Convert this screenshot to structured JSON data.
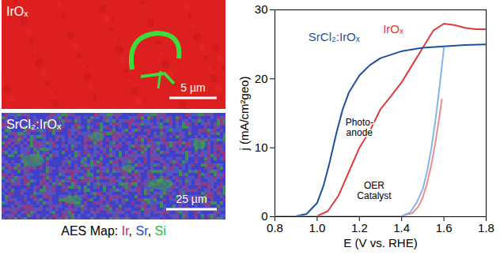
{
  "aes_maps": {
    "panels": [
      {
        "label": "IrOₓ",
        "scale_bar": "5 µm"
      },
      {
        "label": "SrCl₂:IrOₓ",
        "scale_bar": "25 µm"
      }
    ],
    "caption": "AES Map: Ir, Sr, Si",
    "element_colors": {
      "Ir": "#e3241f",
      "Sr": "#2a3fd0",
      "Si": "#2db82d"
    }
  },
  "chart_data": {
    "type": "line",
    "xlabel": "E (V vs. RHE)",
    "ylabel": "j (mA/cm²geo)",
    "xlim": [
      0.8,
      1.8
    ],
    "ylim": [
      0,
      30
    ],
    "xticks": [
      0.8,
      {
        "value": 1,
        "label": "1.0"
      },
      1.2,
      1.4,
      1.6,
      1.8
    ],
    "yticks": [
      0,
      10,
      20,
      30
    ],
    "series": [
      {
        "name": "IrOₓ",
        "color": "#e0393e",
        "x": [
          0.8,
          0.9,
          1.0,
          1.05,
          1.1,
          1.15,
          1.2,
          1.25,
          1.3,
          1.35,
          1.4,
          1.45,
          1.5,
          1.55,
          1.6,
          1.65,
          1.7,
          1.75,
          1.8
        ],
        "values": [
          0,
          0,
          0.1,
          0.8,
          3,
          6.5,
          10,
          12.5,
          15.6,
          17.5,
          19.5,
          22,
          24.5,
          27,
          28,
          27.8,
          27.4,
          27.2,
          27.2
        ]
      },
      {
        "name": "SrCl₂:IrOₓ",
        "color": "#1f4fa0",
        "x": [
          0.8,
          0.9,
          0.95,
          1.0,
          1.03,
          1.06,
          1.09,
          1.12,
          1.15,
          1.2,
          1.25,
          1.3,
          1.4,
          1.5,
          1.6,
          1.7,
          1.8
        ],
        "values": [
          0,
          0.1,
          0.4,
          2,
          4.5,
          8,
          12,
          15.5,
          18,
          20.5,
          22,
          23,
          24,
          24.5,
          24.7,
          24.9,
          25
        ]
      },
      {
        "name": "IrOₓ",
        "color": "#f28b8b",
        "x": [
          0.8,
          1.4,
          1.45,
          1.48,
          1.5,
          1.52,
          1.54,
          1.56,
          1.58,
          1.59
        ],
        "values": [
          0,
          0.1,
          0.5,
          1.5,
          2.8,
          4.8,
          7.5,
          10.8,
          14.8,
          17
        ]
      },
      {
        "name": "SrCl₂:IrOₓ",
        "color": "#86b4e6",
        "x": [
          0.8,
          1.4,
          1.44,
          1.47,
          1.5,
          1.52,
          1.54,
          1.56,
          1.58,
          1.6
        ],
        "values": [
          0,
          0.1,
          0.6,
          2,
          4,
          6.5,
          9.8,
          14,
          19,
          24.5
        ]
      }
    ],
    "annotations": [
      "Photo-anode",
      "OER Catalyst"
    ]
  }
}
